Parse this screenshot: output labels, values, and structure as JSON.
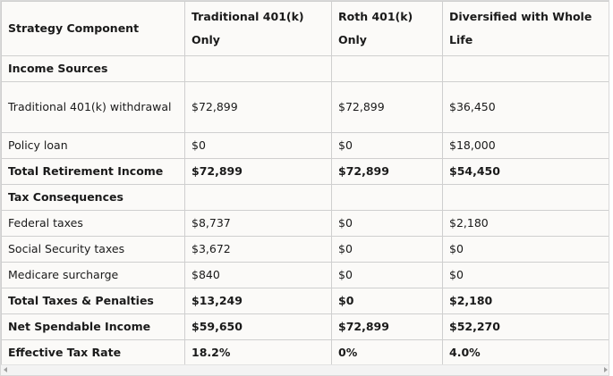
{
  "table": {
    "header": [
      "Strategy Component",
      "Traditional 401(k) Only",
      "Roth 401(k) Only",
      "Diversified with Whole Life"
    ],
    "rows": [
      [
        "Income Sources"
      ],
      [
        "Traditional 401(k) withdrawal",
        "$72,899",
        "$72,899",
        "$36,450"
      ],
      [
        "Policy loan",
        "$0",
        "$0",
        "$18,000"
      ],
      [
        "Total Retirement Income",
        "$72,899",
        "$72,899",
        "$54,450"
      ],
      [
        "Tax Consequences"
      ],
      [
        "Federal taxes",
        "$8,737",
        "$0",
        "$2,180"
      ],
      [
        "Social Security taxes",
        "$3,672",
        "$0",
        "$0"
      ],
      [
        "Medicare surcharge",
        "$840",
        "$0",
        "$0"
      ],
      [
        "Total Taxes & Penalties",
        "$13,249",
        "$0",
        "$2,180"
      ],
      [
        "Net Spendable Income",
        "$59,650",
        "$72,899",
        "$52,270"
      ],
      [
        "Effective Tax Rate",
        "18.2%",
        "0%",
        "4.0%"
      ]
    ]
  }
}
